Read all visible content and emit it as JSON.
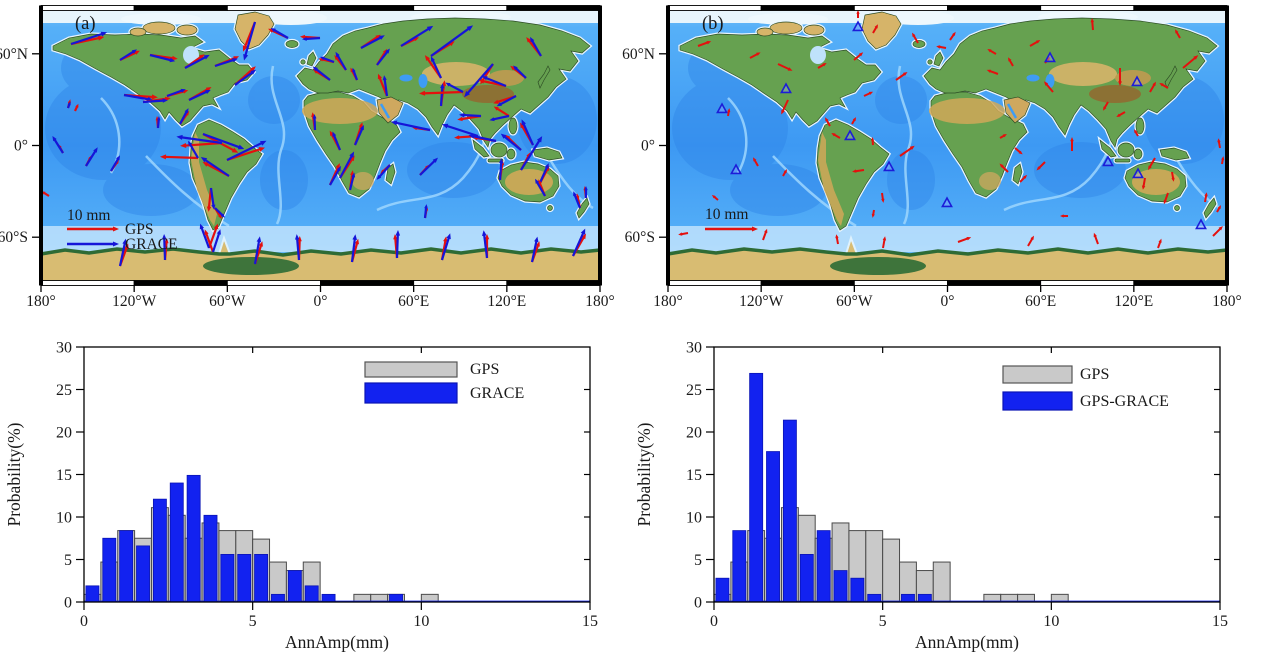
{
  "maps": {
    "lat_tick_labels": [
      "60°N",
      "0°",
      "60°S"
    ],
    "lon_tick_labels": [
      "180°",
      "120°W",
      "60°W",
      "0°",
      "60°E",
      "120°E",
      "180°"
    ],
    "panel_a": {
      "label": "(a)",
      "legend": {
        "scale_label": "10 mm",
        "items": [
          {
            "label": "GPS"
          },
          {
            "label": "GRACE"
          }
        ]
      },
      "gps_color": "#e4100e",
      "grace_color": "#1515d8",
      "vectors": [
        [
          30,
          36,
          -12,
          34,
          -18,
          38
        ],
        [
          79,
          52,
          -25,
          22,
          -32,
          20
        ],
        [
          109,
          47,
          8,
          28,
          14,
          26
        ],
        [
          144,
          60,
          -35,
          24,
          -28,
          28
        ],
        [
          174,
          58,
          -22,
          26,
          -18,
          24
        ],
        [
          194,
          77,
          -42,
          28,
          -36,
          26
        ],
        [
          214,
          14,
          112,
          32,
          106,
          40
        ],
        [
          247,
          30,
          -155,
          22,
          -150,
          20
        ],
        [
          83,
          87,
          4,
          34,
          10,
          30
        ],
        [
          102,
          94,
          -8,
          28,
          -4,
          25
        ],
        [
          126,
          88,
          -15,
          22,
          -20,
          20
        ],
        [
          148,
          92,
          -30,
          26,
          -25,
          24
        ],
        [
          27,
          100,
          -75,
          9,
          -70,
          7
        ],
        [
          34,
          103,
          -65,
          8,
          0,
          0
        ],
        [
          117,
          120,
          -95,
          12,
          -85,
          12
        ],
        [
          139,
          116,
          -55,
          16,
          -62,
          18
        ],
        [
          162,
          126,
          28,
          40,
          20,
          44
        ],
        [
          181,
          135,
          176,
          42,
          -172,
          46
        ],
        [
          157,
          150,
          -178,
          38,
          -120,
          20
        ],
        [
          186,
          152,
          -18,
          40,
          -26,
          44
        ],
        [
          188,
          168,
          -152,
          30,
          -146,
          34
        ],
        [
          170,
          180,
          96,
          24,
          82,
          22
        ],
        [
          174,
          200,
          58,
          13,
          44,
          14
        ],
        [
          22,
          145,
          -118,
          10,
          -122,
          20
        ],
        [
          45,
          158,
          -62,
          12,
          -58,
          22
        ],
        [
          70,
          163,
          -55,
          14,
          -60,
          18
        ],
        [
          8,
          188,
          -148,
          9,
          0,
          0
        ],
        [
          279,
          30,
          -176,
          20,
          176,
          18
        ],
        [
          293,
          54,
          -168,
          16,
          -160,
          15
        ],
        [
          289,
          72,
          -148,
          20,
          -142,
          22
        ],
        [
          305,
          62,
          -128,
          19,
          -120,
          21
        ],
        [
          316,
          72,
          -118,
          14,
          -110,
          13
        ],
        [
          320,
          40,
          -34,
          24,
          -28,
          27
        ],
        [
          336,
          57,
          -58,
          19,
          -52,
          21
        ],
        [
          346,
          88,
          -112,
          24,
          -98,
          21
        ],
        [
          360,
          38,
          -26,
          20,
          -32,
          38
        ],
        [
          390,
          48,
          -32,
          28,
          -36,
          52
        ],
        [
          400,
          70,
          -125,
          28,
          -115,
          24
        ],
        [
          400,
          98,
          -82,
          26,
          -86,
          23
        ],
        [
          422,
          84,
          178,
          44,
          -152,
          20
        ],
        [
          452,
          56,
          122,
          24,
          131,
          44
        ],
        [
          465,
          78,
          -168,
          28,
          -158,
          26
        ],
        [
          475,
          88,
          162,
          24,
          152,
          22
        ],
        [
          485,
          70,
          -142,
          20,
          -136,
          18
        ],
        [
          500,
          48,
          -128,
          24,
          -120,
          22
        ],
        [
          440,
          108,
          171,
          24,
          -177,
          22
        ],
        [
          468,
          108,
          -148,
          18,
          168,
          20
        ],
        [
          437,
          128,
          176,
          24,
          -162,
          38
        ],
        [
          455,
          133,
          -171,
          24,
          -168,
          28
        ],
        [
          480,
          142,
          -136,
          22,
          -141,
          26
        ],
        [
          492,
          137,
          -120,
          26,
          -114,
          28
        ],
        [
          480,
          162,
          -62,
          20,
          -58,
          40
        ],
        [
          498,
          177,
          -62,
          22,
          -66,
          24
        ],
        [
          504,
          188,
          -112,
          18,
          -120,
          20
        ],
        [
          459,
          172,
          -82,
          20,
          -86,
          22
        ],
        [
          539,
          200,
          -102,
          15,
          -112,
          18
        ],
        [
          545,
          190,
          -96,
          12,
          -90,
          12
        ],
        [
          299,
          142,
          -118,
          22,
          -112,
          20
        ],
        [
          274,
          122,
          -98,
          18,
          -92,
          16
        ],
        [
          314,
          137,
          -72,
          24,
          -66,
          22
        ],
        [
          299,
          170,
          -57,
          27,
          -62,
          30
        ],
        [
          289,
          177,
          -66,
          24,
          -60,
          22
        ],
        [
          309,
          182,
          -82,
          20,
          -76,
          18
        ],
        [
          349,
          157,
          138,
          13,
          132,
          20
        ],
        [
          379,
          167,
          -48,
          14,
          -44,
          25
        ],
        [
          389,
          122,
          -172,
          18,
          -168,
          40
        ],
        [
          384,
          210,
          -80,
          12,
          -84,
          14
        ],
        [
          79,
          258,
          -70,
          24,
          -78,
          28
        ],
        [
          124,
          252,
          -85,
          22,
          -92,
          26
        ],
        [
          168,
          240,
          -70,
          26,
          -110,
          26
        ],
        [
          172,
          244,
          -110,
          24,
          -72,
          24
        ],
        [
          214,
          256,
          -72,
          24,
          -80,
          28
        ],
        [
          258,
          252,
          -88,
          24,
          -95,
          26
        ],
        [
          311,
          254,
          -75,
          24,
          -83,
          28
        ],
        [
          356,
          250,
          -95,
          24,
          -88,
          28
        ],
        [
          401,
          252,
          -80,
          24,
          -73,
          28
        ],
        [
          446,
          250,
          -90,
          24,
          -97,
          28
        ],
        [
          491,
          254,
          -70,
          22,
          -78,
          26
        ],
        [
          532,
          248,
          -60,
          26,
          -66,
          30
        ]
      ]
    },
    "panel_b": {
      "label": "(b)",
      "legend": {
        "scale_label": "10 mm",
        "items": []
      },
      "arrow_color": "#e4100e",
      "triangle_color": "#1c1cd8",
      "arrows": [
        [
          30,
          38,
          -20,
          14
        ],
        [
          82,
          50,
          -28,
          12
        ],
        [
          110,
          56,
          25,
          16
        ],
        [
          120,
          92,
          115,
          16
        ],
        [
          150,
          60,
          -30,
          10
        ],
        [
          186,
          52,
          -40,
          12
        ],
        [
          205,
          25,
          -60,
          10
        ],
        [
          228,
          72,
          -35,
          14
        ],
        [
          196,
          88,
          -25,
          10
        ],
        [
          250,
          35,
          -120,
          12
        ],
        [
          190,
          10,
          -90,
          8
        ],
        [
          282,
          32,
          -55,
          10
        ],
        [
          278,
          40,
          -170,
          10
        ],
        [
          162,
          118,
          -120,
          10
        ],
        [
          184,
          116,
          -60,
          8
        ],
        [
          172,
          130,
          -150,
          10
        ],
        [
          205,
          137,
          -95,
          8
        ],
        [
          196,
          162,
          172,
          12
        ],
        [
          232,
          148,
          -35,
          18
        ],
        [
          214,
          185,
          82,
          10
        ],
        [
          206,
          202,
          100,
          8
        ],
        [
          60,
          108,
          -80,
          8
        ],
        [
          90,
          158,
          -120,
          10
        ],
        [
          115,
          168,
          -60,
          8
        ],
        [
          50,
          192,
          -140,
          8
        ],
        [
          20,
          225,
          170,
          10
        ],
        [
          328,
          46,
          -150,
          10
        ],
        [
          330,
          66,
          -160,
          12
        ],
        [
          345,
          58,
          -120,
          10
        ],
        [
          362,
          38,
          -30,
          12
        ],
        [
          377,
          55,
          -50,
          8
        ],
        [
          385,
          84,
          -130,
          14
        ],
        [
          425,
          22,
          -95,
          12
        ],
        [
          452,
          60,
          90,
          18
        ],
        [
          512,
          30,
          -120,
          10
        ],
        [
          515,
          60,
          -40,
          20
        ],
        [
          482,
          84,
          -60,
          12
        ],
        [
          500,
          80,
          -150,
          10
        ],
        [
          440,
          94,
          120,
          10
        ],
        [
          457,
          104,
          150,
          10
        ],
        [
          470,
          128,
          -120,
          8
        ],
        [
          487,
          150,
          120,
          14
        ],
        [
          477,
          170,
          100,
          12
        ],
        [
          504,
          164,
          80,
          10
        ],
        [
          500,
          185,
          110,
          12
        ],
        [
          537,
          194,
          -80,
          10
        ],
        [
          549,
          204,
          -60,
          8
        ],
        [
          552,
          140,
          -100,
          10
        ],
        [
          554,
          156,
          -80,
          8
        ],
        [
          340,
          164,
          -135,
          12
        ],
        [
          352,
          174,
          -45,
          10
        ],
        [
          332,
          130,
          -30,
          8
        ],
        [
          347,
          140,
          40,
          10
        ],
        [
          377,
          154,
          135,
          12
        ],
        [
          404,
          143,
          -90,
          14
        ],
        [
          400,
          208,
          180,
          8
        ],
        [
          95,
          232,
          -70,
          12
        ],
        [
          170,
          236,
          -100,
          10
        ],
        [
          215,
          240,
          -80,
          12
        ],
        [
          290,
          234,
          -20,
          14
        ],
        [
          360,
          238,
          -60,
          12
        ],
        [
          430,
          236,
          -110,
          12
        ],
        [
          490,
          240,
          -70,
          10
        ],
        [
          545,
          228,
          -45,
          14
        ]
      ],
      "triangles": [
        [
          190,
          19
        ],
        [
          118,
          81
        ],
        [
          54,
          101
        ],
        [
          182,
          128
        ],
        [
          221,
          159
        ],
        [
          68,
          162
        ],
        [
          279,
          195
        ],
        [
          382,
          50
        ],
        [
          469,
          74
        ],
        [
          440,
          154
        ],
        [
          470,
          166
        ],
        [
          533,
          217
        ]
      ]
    }
  },
  "chart_data": [
    {
      "type": "bar",
      "title": "",
      "xlabel": "AnnAmp(mm)",
      "ylabel": "Probability(%)",
      "xlim": [
        0,
        15
      ],
      "ylim": [
        0,
        30
      ],
      "xticks": [
        0,
        5,
        10,
        15
      ],
      "yticks": [
        0,
        5,
        10,
        15,
        20,
        25,
        30
      ],
      "grid": false,
      "legend_position": "upper-right",
      "bin_width": 0.5,
      "bin_start": [
        0,
        0.5,
        1,
        1.5,
        2,
        2.5,
        3,
        3.5,
        4,
        4.5,
        5,
        5.5,
        6,
        6.5,
        7,
        7.5,
        8,
        8.5,
        9,
        9.5,
        10
      ],
      "series": [
        {
          "name": "GPS",
          "color": "#c9c9c9",
          "edge": "#4a4a4a",
          "values": [
            0.9,
            4.7,
            8.4,
            7.5,
            11.1,
            10.2,
            7.5,
            9.3,
            8.4,
            8.4,
            7.4,
            4.7,
            3.7,
            4.7,
            0,
            0,
            0.9,
            0.9,
            0.9,
            0,
            0.9
          ]
        },
        {
          "name": "GRACE",
          "color": "#1222f0",
          "edge": "#0a14b4",
          "values": [
            1.9,
            7.5,
            8.4,
            6.6,
            12.1,
            14,
            14.9,
            10.2,
            5.6,
            5.6,
            5.6,
            0.9,
            3.7,
            1.9,
            0.9,
            0,
            0,
            0,
            0.9,
            0,
            0
          ]
        }
      ]
    },
    {
      "type": "bar",
      "title": "",
      "xlabel": "AnnAmp(mm)",
      "ylabel": "Probability(%)",
      "xlim": [
        0,
        15
      ],
      "ylim": [
        0,
        30
      ],
      "xticks": [
        0,
        5,
        10,
        15
      ],
      "yticks": [
        0,
        5,
        10,
        15,
        20,
        25,
        30
      ],
      "grid": false,
      "legend_position": "upper-right",
      "bin_width": 0.5,
      "bin_start": [
        0,
        0.5,
        1,
        1.5,
        2,
        2.5,
        3,
        3.5,
        4,
        4.5,
        5,
        5.5,
        6,
        6.5,
        7,
        7.5,
        8,
        8.5,
        9,
        9.5,
        10
      ],
      "series": [
        {
          "name": "GPS",
          "color": "#c9c9c9",
          "edge": "#4a4a4a",
          "values": [
            0.9,
            4.7,
            8.4,
            7.5,
            11.1,
            10.2,
            7.5,
            9.3,
            8.4,
            8.4,
            7.4,
            4.7,
            3.7,
            4.7,
            0,
            0,
            0.9,
            0.9,
            0.9,
            0,
            0.9
          ]
        },
        {
          "name": "GPS-GRACE",
          "color": "#1222f0",
          "edge": "#0a14b4",
          "values": [
            2.8,
            8.4,
            26.9,
            17.7,
            21.4,
            5.6,
            8.4,
            3.7,
            2.8,
            0.9,
            0,
            0.9,
            0.9,
            0,
            0,
            0,
            0,
            0,
            0,
            0,
            0
          ]
        }
      ]
    }
  ]
}
